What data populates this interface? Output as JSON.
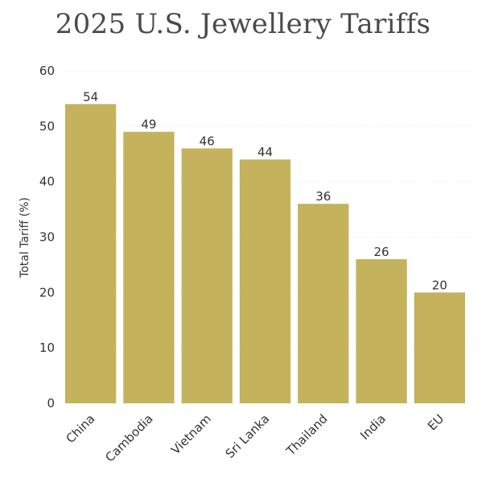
{
  "chart_data": {
    "type": "bar",
    "title": "2025 U.S. Jewellery Tariffs",
    "ylabel": "Total Tariff (%)",
    "xlabel": "",
    "categories": [
      "China",
      "Cambodia",
      "Vietnam",
      "Sri Lanka",
      "Thailand",
      "India",
      "EU"
    ],
    "values": [
      54,
      49,
      46,
      44,
      36,
      26,
      20
    ],
    "ylim": [
      0,
      60
    ],
    "yticks": [
      0,
      10,
      20,
      30,
      40,
      50,
      60
    ],
    "grid": true,
    "bar_color": "#c4b35c",
    "data_labels": true
  }
}
